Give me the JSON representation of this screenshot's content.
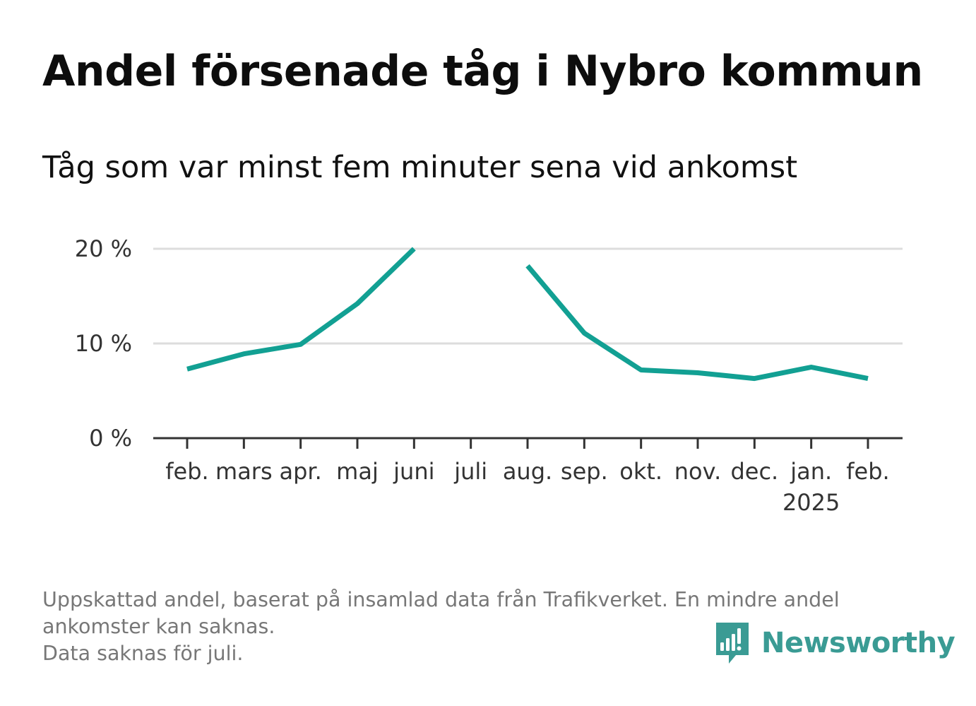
{
  "title": "Andel försenade tåg i Nybro kommun",
  "subtitle": "Tåg som var minst fem minuter sena vid ankomst",
  "footnote": {
    "line1": "Uppskattad andel, baserat på insamlad data från Trafikverket. En mindre andel",
    "line2": "ankomster kan saknas.",
    "line3": "Data saknas för juli."
  },
  "brand": {
    "name": "Newsworthy",
    "color": "#3a9b94",
    "icon": "newsworthy-logo-icon"
  },
  "chart_data": {
    "type": "line",
    "title": "Andel försenade tåg i Nybro kommun",
    "subtitle": "Tåg som var minst fem minuter sena vid ankomst",
    "categories": [
      "feb.",
      "mars",
      "apr.",
      "maj",
      "juni",
      "juli",
      "aug.",
      "sep.",
      "okt.",
      "nov.",
      "dec.",
      "jan.",
      "feb."
    ],
    "year_label": {
      "text": "2025",
      "under_index": 11
    },
    "series": [
      {
        "values": [
          7.3,
          8.9,
          9.9,
          14.2,
          20.0,
          null,
          18.2,
          11.1,
          7.2,
          6.9,
          6.3,
          7.5,
          6.3
        ],
        "color": "#12a093"
      }
    ],
    "y_ticks": [
      {
        "value": 0,
        "label": "0 %"
      },
      {
        "value": 10,
        "label": "10 %"
      },
      {
        "value": 20,
        "label": "20 %"
      }
    ],
    "ylim": [
      0,
      20
    ],
    "grid": true,
    "xlabel": "",
    "ylabel": ""
  }
}
